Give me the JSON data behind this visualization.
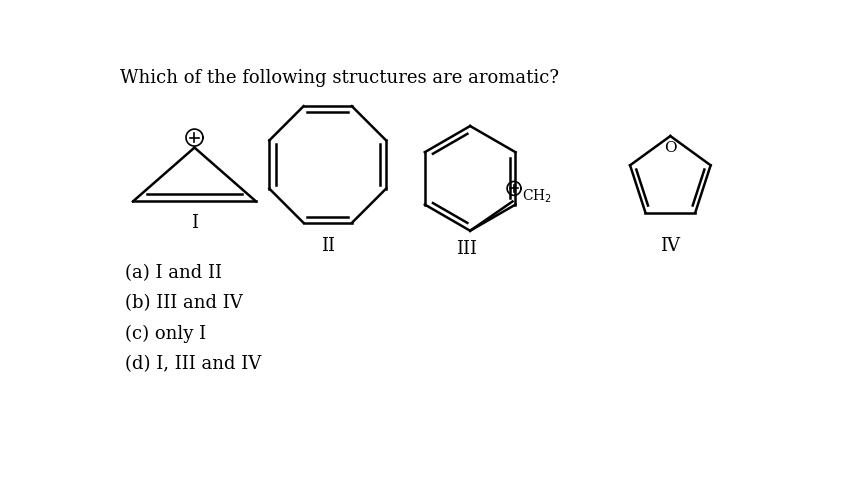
{
  "title": "Which of the following structures are aromatic?",
  "bg_color": "#ffffff",
  "text_color": "#000000",
  "options": [
    "(a) I and II",
    "(b) III and IV",
    "(c) only I",
    "(d) I, III and IV"
  ],
  "labels": [
    "I",
    "II",
    "III",
    "IV"
  ],
  "font_size_title": 13,
  "font_size_options": 13,
  "font_size_labels": 13,
  "lw": 1.8
}
